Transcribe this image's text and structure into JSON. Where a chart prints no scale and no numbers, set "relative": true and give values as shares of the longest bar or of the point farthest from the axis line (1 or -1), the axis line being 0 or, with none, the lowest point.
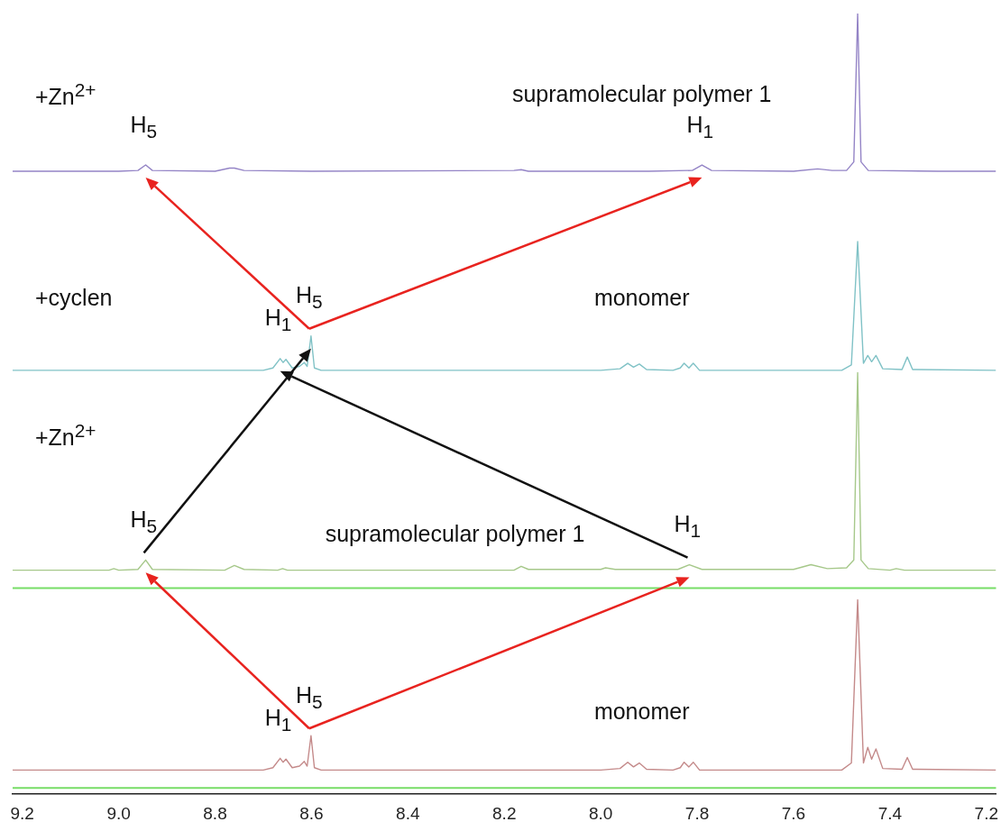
{
  "chart_data": {
    "type": "line",
    "relative": true,
    "xlim": [
      9.22,
      7.18
    ],
    "xticks": [
      9.2,
      {
        "value": 9,
        "label": "9.0"
      },
      8.8,
      8.6,
      8.4,
      8.2,
      {
        "value": 8,
        "label": "8.0"
      },
      7.8,
      7.6,
      7.4,
      7.2
    ],
    "grid": false,
    "legend": false,
    "marker": "none",
    "line_style": "solid",
    "tick_labels": "x",
    "series": [
      {
        "name": "supramolecular polymer 1",
        "color": "#9484c6",
        "x": [
          9.22,
          9.0,
          8.96,
          8.944,
          8.93,
          8.8,
          8.77,
          8.76,
          8.74,
          8.6,
          8.18,
          8.165,
          8.15,
          7.9,
          7.81,
          7.79,
          7.77,
          7.6,
          7.55,
          7.52,
          7.49,
          7.475,
          7.467,
          7.46,
          7.445,
          7.3,
          7.18
        ],
        "values": [
          0.798,
          0.798,
          0.799,
          0.806,
          0.799,
          0.798,
          0.802,
          0.802,
          0.799,
          0.798,
          0.799,
          0.8,
          0.798,
          0.798,
          0.799,
          0.806,
          0.799,
          0.798,
          0.801,
          0.799,
          0.799,
          0.81,
          1.0,
          0.81,
          0.799,
          0.798,
          0.798
        ]
      },
      {
        "name": "monomer",
        "color": "#80c2c6",
        "x": [
          9.22,
          8.7,
          8.68,
          8.665,
          8.659,
          8.653,
          8.64,
          8.625,
          8.615,
          8.609,
          8.601,
          8.594,
          8.58,
          8.0,
          7.96,
          7.944,
          7.932,
          7.92,
          7.905,
          7.85,
          7.835,
          7.827,
          7.817,
          7.808,
          7.795,
          7.5,
          7.48,
          7.467,
          7.455,
          7.446,
          7.438,
          7.429,
          7.415,
          7.375,
          7.364,
          7.353,
          7.18
        ],
        "values": [
          0.543,
          0.543,
          0.546,
          0.558,
          0.553,
          0.557,
          0.546,
          0.548,
          0.553,
          0.548,
          0.587,
          0.546,
          0.543,
          0.543,
          0.545,
          0.552,
          0.547,
          0.551,
          0.544,
          0.543,
          0.546,
          0.552,
          0.546,
          0.552,
          0.543,
          0.543,
          0.55,
          0.708,
          0.552,
          0.562,
          0.554,
          0.562,
          0.545,
          0.544,
          0.56,
          0.544,
          0.543
        ]
      },
      {
        "name": "supramolecular polymer 1",
        "color": "#a6c88a",
        "x": [
          9.22,
          9.02,
          9.01,
          9.0,
          8.96,
          8.944,
          8.93,
          8.78,
          8.76,
          8.74,
          8.67,
          8.66,
          8.65,
          8.18,
          8.165,
          8.15,
          8.0,
          7.99,
          7.97,
          7.84,
          7.816,
          7.79,
          7.6,
          7.564,
          7.53,
          7.49,
          7.475,
          7.467,
          7.46,
          7.445,
          7.4,
          7.387,
          7.37,
          7.18
        ],
        "values": [
          0.287,
          0.287,
          0.289,
          0.287,
          0.288,
          0.3,
          0.288,
          0.287,
          0.293,
          0.288,
          0.287,
          0.289,
          0.287,
          0.287,
          0.292,
          0.288,
          0.288,
          0.29,
          0.288,
          0.288,
          0.294,
          0.288,
          0.288,
          0.294,
          0.289,
          0.29,
          0.3,
          0.54,
          0.3,
          0.289,
          0.287,
          0.289,
          0.287,
          0.287
        ]
      },
      {
        "name": "monomer",
        "color": "#c48a8a",
        "x": [
          9.22,
          8.7,
          8.68,
          8.665,
          8.659,
          8.653,
          8.64,
          8.625,
          8.615,
          8.609,
          8.601,
          8.594,
          8.58,
          8.0,
          7.96,
          7.944,
          7.932,
          7.92,
          7.905,
          7.85,
          7.835,
          7.827,
          7.817,
          7.808,
          7.795,
          7.5,
          7.48,
          7.467,
          7.455,
          7.446,
          7.438,
          7.429,
          7.415,
          7.375,
          7.364,
          7.353,
          7.18
        ],
        "values": [
          0.031,
          0.031,
          0.034,
          0.046,
          0.041,
          0.045,
          0.034,
          0.036,
          0.042,
          0.036,
          0.075,
          0.034,
          0.031,
          0.031,
          0.033,
          0.041,
          0.035,
          0.04,
          0.032,
          0.031,
          0.034,
          0.041,
          0.035,
          0.041,
          0.031,
          0.031,
          0.04,
          0.249,
          0.04,
          0.06,
          0.045,
          0.058,
          0.033,
          0.032,
          0.047,
          0.032,
          0.031
        ]
      }
    ],
    "ref_lines": [
      {
        "axis": "y",
        "value": 0.264,
        "color": "#77dd66"
      },
      {
        "axis": "y",
        "value": 0.008,
        "color": "#77dd66"
      }
    ],
    "annotations": [
      "+Zn$^{2+}$",
      "+cyclen",
      "+Zn$^{2+}$",
      {
        "text": "H$_{5}$",
        "x": 8.944,
        "y": 0.806
      },
      {
        "text": "H$_{1}$",
        "x": 7.79,
        "y": 0.806
      },
      {
        "text": "H$_{1}$",
        "x": 8.665,
        "y": 0.558
      },
      {
        "text": "H$_{5}$",
        "x": 8.601,
        "y": 0.587
      },
      {
        "text": "H$_{5}$",
        "x": 8.944,
        "y": 0.3
      },
      {
        "text": "H$_{1}$",
        "x": 7.816,
        "y": 0.294
      },
      {
        "text": "H$_{1}$",
        "x": 8.665,
        "y": 0.046
      },
      {
        "text": "H$_{5}$",
        "x": 8.601,
        "y": 0.075
      }
    ]
  }
}
